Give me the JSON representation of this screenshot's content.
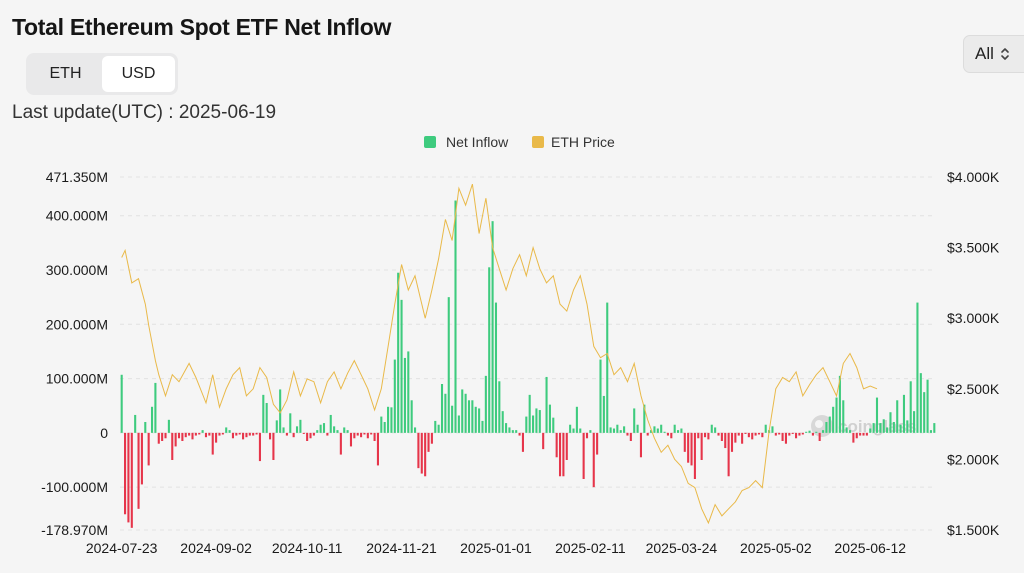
{
  "title": "Total Ethereum Spot ETF Net Inflow",
  "unit_toggle": {
    "options": [
      "ETH",
      "USD"
    ],
    "selected": "USD"
  },
  "range_select": {
    "value": "All"
  },
  "last_update": "Last update(UTC) : 2025-06-19",
  "watermark": "coinglass",
  "chart_data": {
    "type": "bar+line",
    "legend": [
      {
        "name": "Net Inflow",
        "color": "#3ecb7e"
      },
      {
        "name": "ETH Price",
        "color": "#e9b949"
      }
    ],
    "colors": {
      "positive": "#3ecb7e",
      "negative": "#e6354a",
      "price": "#e9b949"
    },
    "y_left": {
      "range": [
        -178.97,
        471.35
      ],
      "ticks": [
        {
          "value": 471.35,
          "label": "471.350M"
        },
        {
          "value": 400,
          "label": "400.000M"
        },
        {
          "value": 300,
          "label": "300.000M"
        },
        {
          "value": 200,
          "label": "200.000M"
        },
        {
          "value": 100,
          "label": "100.000M"
        },
        {
          "value": 0,
          "label": "0"
        },
        {
          "value": -100,
          "label": "-100.000M"
        },
        {
          "value": -178.97,
          "label": "-178.970M"
        }
      ]
    },
    "y_right": {
      "range": [
        1500,
        4000
      ],
      "ticks": [
        {
          "value": 4000,
          "label": "$4.000K"
        },
        {
          "value": 3500,
          "label": "$3.500K"
        },
        {
          "value": 3000,
          "label": "$3.000K"
        },
        {
          "value": 2500,
          "label": "$2.500K"
        },
        {
          "value": 2000,
          "label": "$2.000K"
        },
        {
          "value": 1500,
          "label": "$1.500K"
        }
      ]
    },
    "x_labels": [
      "2024-07-23",
      "2024-09-02",
      "2024-10-11",
      "2024-11-21",
      "2025-01-01",
      "2025-02-11",
      "2025-03-24",
      "2025-05-02",
      "2025-06-12"
    ],
    "x_label_index": [
      0,
      28,
      55,
      83,
      111,
      139,
      166,
      194,
      222
    ],
    "net_inflow_musd": [
      107,
      -150,
      -165,
      -175,
      33,
      -140,
      -95,
      20,
      -60,
      48,
      92,
      -20,
      -15,
      -10,
      24,
      -50,
      -25,
      -10,
      -15,
      -8,
      -5,
      -12,
      -5,
      -3,
      5,
      -8,
      -5,
      -40,
      -18,
      -5,
      -3,
      10,
      5,
      -10,
      -5,
      -3,
      -12,
      -8,
      -5,
      -5,
      -3,
      -52,
      70,
      55,
      -12,
      -50,
      23,
      80,
      10,
      -5,
      36,
      -8,
      12,
      24,
      -2,
      -15,
      -10,
      -5,
      5,
      15,
      18,
      -5,
      33,
      12,
      5,
      -40,
      10,
      5,
      -25,
      -10,
      -5,
      -8,
      -3,
      -10,
      -3,
      -15,
      -60,
      30,
      20,
      48,
      47,
      135,
      295,
      245,
      138,
      150,
      60,
      10,
      -65,
      -75,
      -80,
      -35,
      -20,
      22,
      15,
      90,
      72,
      250,
      50,
      428,
      32,
      80,
      72,
      60,
      60,
      48,
      45,
      22,
      105,
      305,
      390,
      240,
      95,
      40,
      18,
      10,
      5,
      5,
      -5,
      -35,
      30,
      70,
      32,
      45,
      42,
      -30,
      103,
      52,
      28,
      -45,
      -80,
      -80,
      -50,
      15,
      8,
      48,
      8,
      -85,
      -10,
      5,
      -100,
      -40,
      135,
      68,
      240,
      10,
      8,
      15,
      5,
      12,
      -5,
      -15,
      45,
      15,
      -45,
      52,
      -5,
      5,
      12,
      8,
      15,
      2,
      -5,
      -10,
      15,
      5,
      8,
      -35,
      -55,
      -60,
      -85,
      -10,
      -50,
      -8,
      -12,
      15,
      10,
      -5,
      -15,
      -28,
      -80,
      -35,
      -18,
      -5,
      -20,
      -2,
      -8,
      -12,
      -5,
      -3,
      -8,
      15,
      5,
      12,
      -5,
      -3,
      -15,
      -20,
      -5,
      -2,
      -10,
      -5,
      -3,
      2,
      4,
      -5,
      2,
      -15,
      5,
      20,
      30,
      48,
      65,
      105,
      60,
      10,
      5,
      -18,
      -10,
      -5,
      -5,
      -5,
      8,
      18,
      65,
      18,
      25,
      10,
      38,
      20,
      60,
      15,
      70,
      23,
      95,
      40,
      240,
      110,
      75,
      98,
      5,
      18
    ]
  }
}
